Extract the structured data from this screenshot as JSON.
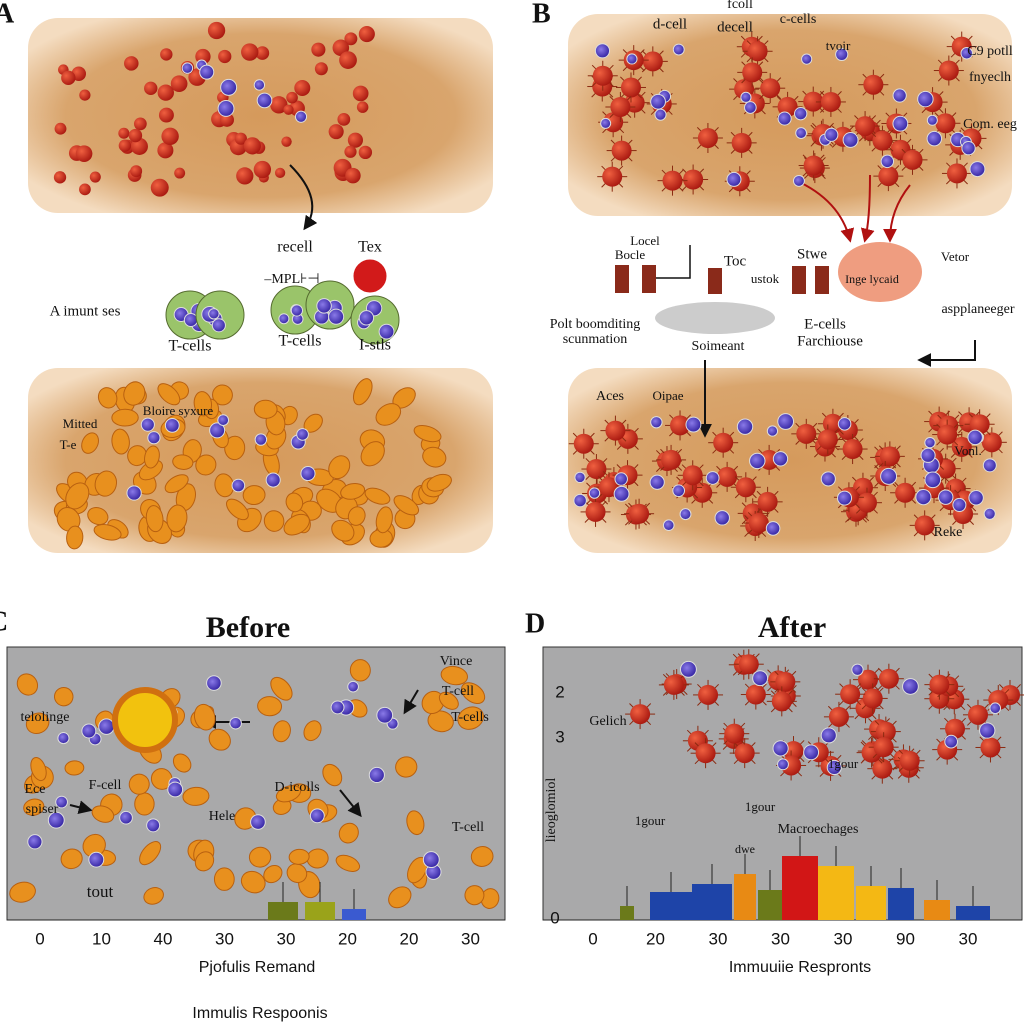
{
  "panel_a": {
    "label": "A",
    "labels": [
      "recell",
      "Tex",
      "–MPL⊦⊣",
      "A imunt ses",
      "T-cells",
      "T-cells",
      "I-stls",
      "Mitted",
      "T-e",
      "Bloire syxure"
    ]
  },
  "panel_b": {
    "label": "B",
    "labels": [
      "d-cell",
      "fcoll",
      "decell",
      "c-cells",
      "tvoir",
      "C9 potll",
      "fnyeclh",
      "Com. eeg",
      "Locel",
      "Bocle",
      "Toc",
      "ustok",
      "Stwe",
      "Inge lycaid",
      "Vetor",
      "aspplaneeger",
      "Polt boomditing",
      "scunmation",
      "Soimeant",
      "E-cells",
      "Farchiouse",
      "Aces",
      "Oipae",
      "Vonl.",
      "Reke"
    ]
  },
  "panel_c": {
    "label": "C",
    "title": "Before",
    "labels": [
      "Vince",
      "T-cell",
      "T-cells",
      "telolinge",
      "Ece",
      "spiser",
      "F-cell",
      "D-icolls",
      "Hele",
      "T-cell",
      "tout"
    ],
    "x_ticks": [
      "0",
      "10",
      "40",
      "30",
      "30",
      "20",
      "20",
      "30"
    ],
    "x_axis_label": "Pjofulis Remand",
    "footer": "Immulis Respoonis"
  },
  "panel_d": {
    "label": "D",
    "title": "After",
    "labels": [
      "Gelich",
      "1gour",
      "1gour",
      "1gour",
      "Macroechages",
      "dwe"
    ],
    "y_ticks": [
      "2",
      "3",
      "0"
    ],
    "y_axis_label": "lieoglomiol",
    "x_ticks": [
      "0",
      "20",
      "30",
      "30",
      "30",
      "90",
      "30"
    ],
    "x_axis_label": "Immuuiie Respronts"
  }
}
